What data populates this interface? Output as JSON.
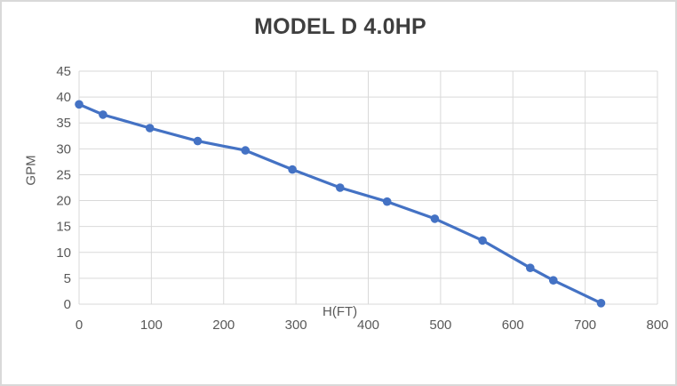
{
  "chart": {
    "title": "MODEL D 4.0HP",
    "x_axis_title": "H(FT)",
    "y_axis_title": "GPM"
  },
  "chart_data": {
    "type": "line",
    "title": "MODEL D 4.0HP",
    "xlabel": "H(FT)",
    "ylabel": "GPM",
    "x": [
      0,
      33,
      98,
      164,
      230,
      295,
      361,
      426,
      492,
      558,
      624,
      656,
      722
    ],
    "y": [
      38.6,
      36.6,
      34.0,
      31.5,
      29.7,
      26.0,
      22.5,
      19.8,
      16.5,
      12.3,
      7.0,
      4.6,
      0.2
    ],
    "xlim": [
      0,
      800
    ],
    "ylim": [
      0,
      45
    ],
    "xtick_step": 100,
    "ytick_step": 5,
    "grid": true,
    "legend_position": "none",
    "series_name": "GPM vs H(FT)",
    "series_color": "#4472C4",
    "gridline_color": "#D9D9D9",
    "tick_label_color": "#595959",
    "title_color": "#3F3F3F",
    "marker": "circle",
    "line_width": 3.2,
    "marker_radius": 4.8
  }
}
